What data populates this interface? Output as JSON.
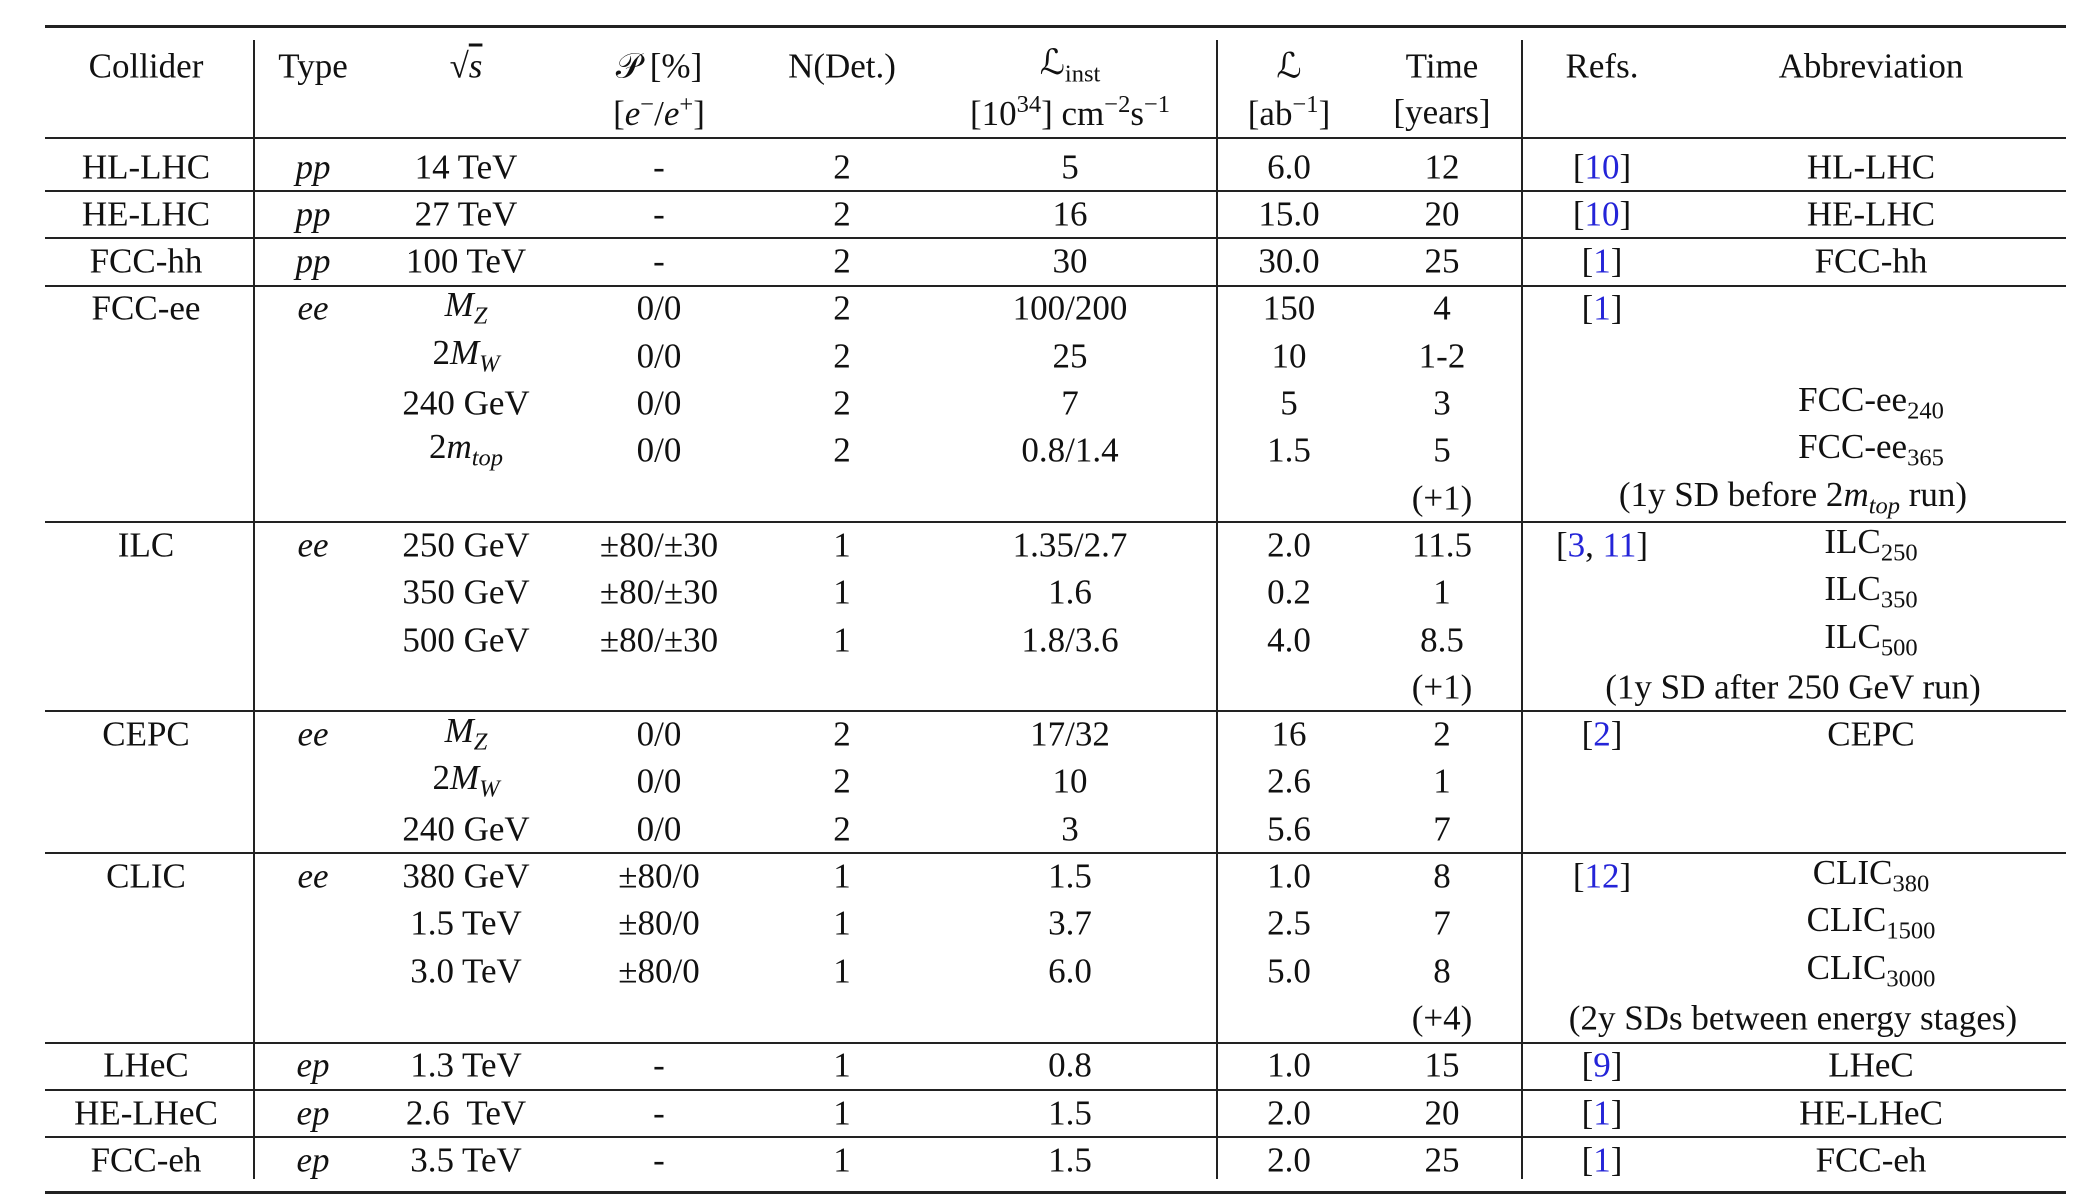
{
  "table": {
    "header": [
      [
        "Collider"
      ],
      [
        "Type"
      ],
      [
        [
          {
            "t": "√"
          },
          {
            "t": "s",
            "it": true,
            "over": true
          }
        ]
      ],
      [
        [
          {
            "t": "𝒫"
          },
          {
            "t": " [%]"
          }
        ],
        [
          {
            "t": "["
          },
          {
            "t": "e",
            "it": true
          },
          {
            "t": "−",
            "sup": true
          },
          {
            "t": "/"
          },
          {
            "t": "e",
            "it": true
          },
          {
            "t": "+",
            "sup": true
          },
          {
            "t": "]"
          }
        ]
      ],
      [
        "N(Det.)"
      ],
      [
        [
          {
            "t": "ℒ"
          },
          {
            "t": "inst",
            "sub": true
          }
        ],
        [
          {
            "t": "[10"
          },
          {
            "t": "34",
            "sup": true
          },
          {
            "t": "] cm"
          },
          {
            "t": "−2",
            "sup": true
          },
          {
            "t": "s"
          },
          {
            "t": "−1",
            "sup": true
          }
        ]
      ],
      [
        "ℒ",
        [
          {
            "t": "[ab"
          },
          {
            "t": "−1",
            "sup": true
          },
          {
            "t": "]"
          }
        ]
      ],
      [
        "Time",
        "[years]"
      ],
      [
        "Refs."
      ],
      [
        "Abbreviation"
      ]
    ],
    "groups": [
      {
        "rows": [
          {
            "cells": [
              "HL-LHC",
              [
                {
                  "t": "pp",
                  "it": true
                }
              ],
              "14 TeV",
              "-",
              "2",
              "5",
              "6.0",
              "12",
              [
                {
                  "t": "["
                },
                {
                  "t": "10",
                  "link": true
                },
                {
                  "t": "]"
                }
              ],
              "HL-LHC"
            ]
          }
        ]
      },
      {
        "rows": [
          {
            "cells": [
              "HE-LHC",
              [
                {
                  "t": "pp",
                  "it": true
                }
              ],
              "27 TeV",
              "-",
              "2",
              "16",
              "15.0",
              "20",
              [
                {
                  "t": "["
                },
                {
                  "t": "10",
                  "link": true
                },
                {
                  "t": "]"
                }
              ],
              "HE-LHC"
            ]
          }
        ]
      },
      {
        "rows": [
          {
            "cells": [
              "FCC-hh",
              [
                {
                  "t": "pp",
                  "it": true
                }
              ],
              "100 TeV",
              "-",
              "2",
              "30",
              "30.0",
              "25",
              [
                {
                  "t": "["
                },
                {
                  "t": "1",
                  "link": true
                },
                {
                  "t": "]"
                }
              ],
              "FCC-hh"
            ]
          }
        ]
      },
      {
        "rows": [
          {
            "cells": [
              "FCC-ee",
              [
                {
                  "t": "ee",
                  "it": true
                }
              ],
              [
                {
                  "t": "M",
                  "it": true
                },
                {
                  "t": "Z",
                  "it": true,
                  "sub": true
                }
              ],
              "0/0",
              "2",
              "100/200",
              "150",
              "4",
              [
                {
                  "t": "["
                },
                {
                  "t": "1",
                  "link": true
                },
                {
                  "t": "]"
                }
              ],
              null
            ]
          },
          {
            "cells": [
              null,
              null,
              [
                {
                  "t": "2"
                },
                {
                  "t": "M",
                  "it": true
                },
                {
                  "t": "W",
                  "it": true,
                  "sub": true
                }
              ],
              "0/0",
              "2",
              "25",
              "10",
              "1-2",
              null,
              null
            ]
          },
          {
            "cells": [
              null,
              null,
              "240 GeV",
              "0/0",
              "2",
              "7",
              "5",
              "3",
              null,
              [
                {
                  "t": "FCC-ee"
                },
                {
                  "t": "240",
                  "sub": true
                }
              ]
            ]
          },
          {
            "cells": [
              null,
              null,
              [
                {
                  "t": "2"
                },
                {
                  "t": "m",
                  "it": true
                },
                {
                  "t": "top",
                  "it": true,
                  "sub": true
                }
              ],
              "0/0",
              "2",
              "0.8/1.4",
              "1.5",
              "5",
              null,
              [
                {
                  "t": "FCC-ee"
                },
                {
                  "t": "365",
                  "sub": true
                }
              ]
            ]
          },
          {
            "cells": [
              null,
              null,
              null,
              null,
              null,
              null,
              null,
              "(+1)",
              null,
              null
            ],
            "note": [
              {
                "t": "(1y SD before 2"
              },
              {
                "t": "m",
                "it": true
              },
              {
                "t": "top",
                "it": true,
                "sub": true
              },
              {
                "t": " run)"
              }
            ]
          }
        ]
      },
      {
        "rows": [
          {
            "cells": [
              "ILC",
              [
                {
                  "t": "ee",
                  "it": true
                }
              ],
              "250 GeV",
              "±80/±30",
              "1",
              "1.35/2.7",
              "2.0",
              "11.5",
              [
                {
                  "t": "["
                },
                {
                  "t": "3",
                  "link": true
                },
                {
                  "t": ", "
                },
                {
                  "t": "11",
                  "link": true
                },
                {
                  "t": "]"
                }
              ],
              [
                {
                  "t": "ILC"
                },
                {
                  "t": "250",
                  "sub": true
                }
              ]
            ]
          },
          {
            "cells": [
              null,
              null,
              "350 GeV",
              "±80/±30",
              "1",
              "1.6",
              "0.2",
              "1",
              null,
              [
                {
                  "t": "ILC"
                },
                {
                  "t": "350",
                  "sub": true
                }
              ]
            ]
          },
          {
            "cells": [
              null,
              null,
              "500 GeV",
              "±80/±30",
              "1",
              "1.8/3.6",
              "4.0",
              "8.5",
              null,
              [
                {
                  "t": "ILC"
                },
                {
                  "t": "500",
                  "sub": true
                }
              ]
            ]
          },
          {
            "cells": [
              null,
              null,
              null,
              null,
              null,
              null,
              null,
              "(+1)",
              null,
              null
            ],
            "note": "(1y SD after 250 GeV run)"
          }
        ]
      },
      {
        "rows": [
          {
            "cells": [
              "CEPC",
              [
                {
                  "t": "ee",
                  "it": true
                }
              ],
              [
                {
                  "t": "M",
                  "it": true
                },
                {
                  "t": "Z",
                  "it": true,
                  "sub": true
                }
              ],
              "0/0",
              "2",
              "17/32",
              "16",
              "2",
              [
                {
                  "t": "["
                },
                {
                  "t": "2",
                  "link": true
                },
                {
                  "t": "]"
                }
              ],
              "CEPC"
            ]
          },
          {
            "cells": [
              null,
              null,
              [
                {
                  "t": "2"
                },
                {
                  "t": "M",
                  "it": true
                },
                {
                  "t": "W",
                  "it": true,
                  "sub": true
                }
              ],
              "0/0",
              "2",
              "10",
              "2.6",
              "1",
              null,
              null
            ]
          },
          {
            "cells": [
              null,
              null,
              "240 GeV",
              "0/0",
              "2",
              "3",
              "5.6",
              "7",
              null,
              null
            ]
          }
        ]
      },
      {
        "rows": [
          {
            "cells": [
              "CLIC",
              [
                {
                  "t": "ee",
                  "it": true
                }
              ],
              "380 GeV",
              "±80/0",
              "1",
              "1.5",
              "1.0",
              "8",
              [
                {
                  "t": "["
                },
                {
                  "t": "12",
                  "link": true
                },
                {
                  "t": "]"
                }
              ],
              [
                {
                  "t": "CLIC"
                },
                {
                  "t": "380",
                  "sub": true
                }
              ]
            ]
          },
          {
            "cells": [
              null,
              null,
              "1.5 TeV",
              "±80/0",
              "1",
              "3.7",
              "2.5",
              "7",
              null,
              [
                {
                  "t": "CLIC"
                },
                {
                  "t": "1500",
                  "sub": true
                }
              ]
            ]
          },
          {
            "cells": [
              null,
              null,
              "3.0 TeV",
              "±80/0",
              "1",
              "6.0",
              "5.0",
              "8",
              null,
              [
                {
                  "t": "CLIC"
                },
                {
                  "t": "3000",
                  "sub": true
                }
              ]
            ]
          },
          {
            "cells": [
              null,
              null,
              null,
              null,
              null,
              null,
              null,
              "(+4)",
              null,
              null
            ],
            "note": "(2y SDs between energy stages)"
          }
        ]
      },
      {
        "rows": [
          {
            "cells": [
              "LHeC",
              [
                {
                  "t": "ep",
                  "it": true
                }
              ],
              "1.3 TeV",
              "-",
              "1",
              "0.8",
              "1.0",
              "15",
              [
                {
                  "t": "["
                },
                {
                  "t": "9",
                  "link": true
                },
                {
                  "t": "]"
                }
              ],
              "LHeC"
            ]
          }
        ]
      },
      {
        "rows": [
          {
            "cells": [
              "HE-LHeC",
              [
                {
                  "t": "ep",
                  "it": true
                }
              ],
              "2.6  TeV",
              "-",
              "1",
              "1.5",
              "2.0",
              "20",
              [
                {
                  "t": "["
                },
                {
                  "t": "1",
                  "link": true
                },
                {
                  "t": "]"
                }
              ],
              "HE-LHeC"
            ]
          }
        ]
      },
      {
        "rows": [
          {
            "cells": [
              "FCC-eh",
              [
                {
                  "t": "ep",
                  "it": true
                }
              ],
              "3.5 TeV",
              "-",
              "1",
              "1.5",
              "2.0",
              "25",
              [
                {
                  "t": "["
                },
                {
                  "t": "1",
                  "link": true
                },
                {
                  "t": "]"
                }
              ],
              "FCC-eh"
            ]
          }
        ]
      }
    ]
  }
}
